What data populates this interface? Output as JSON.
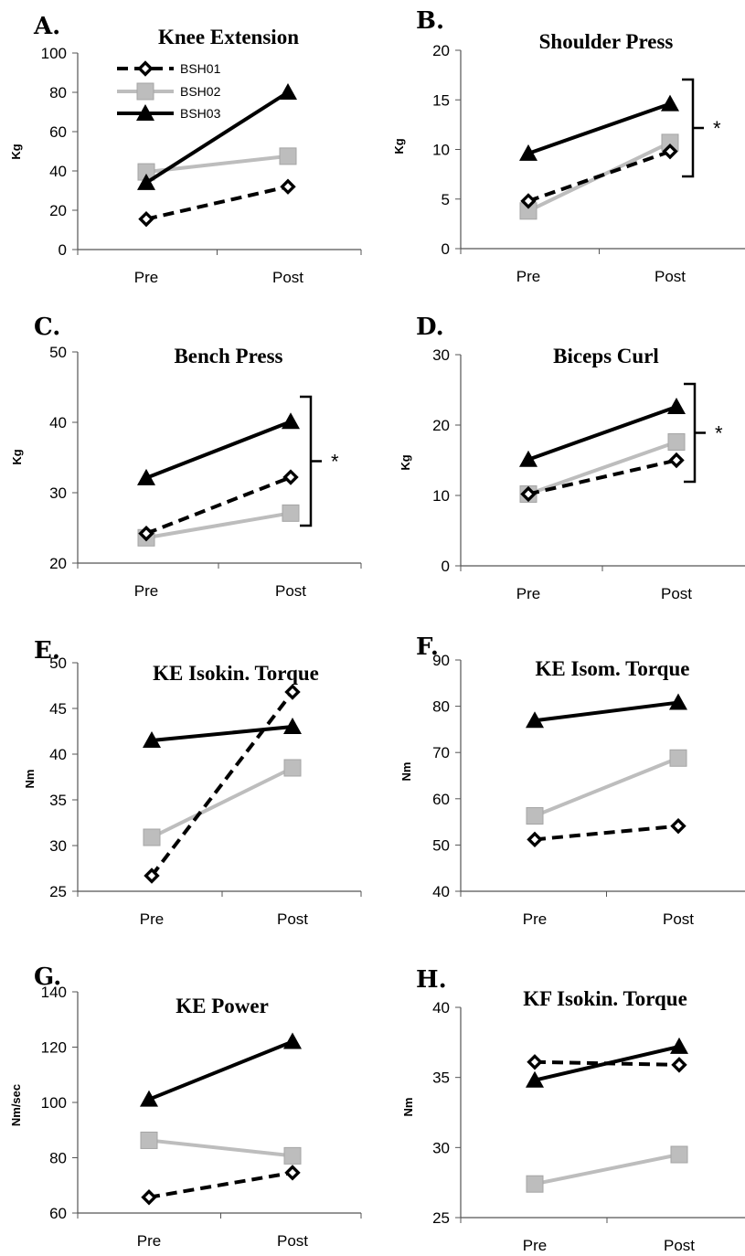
{
  "legend": [
    {
      "label": "BSH01",
      "style": "dashed-diamond"
    },
    {
      "label": "BSH02",
      "style": "gray-square"
    },
    {
      "label": "BSH03",
      "style": "black-triangle"
    }
  ],
  "series_colors": {
    "BSH01": "#000000",
    "BSH02": "#bdbdbd",
    "BSH03": "#000000"
  },
  "chart_data": [
    {
      "type": "line",
      "panel": "A.",
      "title": "Knee Extension",
      "ylabel": "Kg",
      "categories": [
        "Pre",
        "Post"
      ],
      "ylim": [
        0,
        100
      ],
      "yticks": [
        0,
        20,
        40,
        60,
        80,
        100
      ],
      "series": [
        {
          "name": "BSH01",
          "values": [
            15.5,
            32
          ]
        },
        {
          "name": "BSH02",
          "values": [
            39.5,
            47.5
          ]
        },
        {
          "name": "BSH03",
          "values": [
            34,
            80
          ]
        }
      ],
      "significance": ""
    },
    {
      "type": "line",
      "panel": "B.",
      "title": "Shoulder Press",
      "ylabel": "Kg",
      "categories": [
        "Pre",
        "Post"
      ],
      "ylim": [
        0,
        20
      ],
      "yticks": [
        0,
        5,
        10,
        15,
        20
      ],
      "series": [
        {
          "name": "BSH01",
          "values": [
            4.8,
            9.8
          ]
        },
        {
          "name": "BSH02",
          "values": [
            3.8,
            10.7
          ]
        },
        {
          "name": "BSH03",
          "values": [
            9.6,
            14.6
          ]
        }
      ],
      "significance": "*"
    },
    {
      "type": "line",
      "panel": "C.",
      "title": "Bench Press",
      "ylabel": "Kg",
      "categories": [
        "Pre",
        "Post"
      ],
      "ylim": [
        20,
        50
      ],
      "yticks": [
        20,
        30,
        40,
        50
      ],
      "series": [
        {
          "name": "BSH01",
          "values": [
            24.2,
            32.2
          ]
        },
        {
          "name": "BSH02",
          "values": [
            23.6,
            27.1
          ]
        },
        {
          "name": "BSH03",
          "values": [
            32.1,
            40.1
          ]
        }
      ],
      "significance": "*"
    },
    {
      "type": "line",
      "panel": "D.",
      "title": "Biceps Curl",
      "ylabel": "Kg",
      "categories": [
        "Pre",
        "Post"
      ],
      "ylim": [
        0,
        30
      ],
      "yticks": [
        0,
        10,
        20,
        30
      ],
      "series": [
        {
          "name": "BSH01",
          "values": [
            10.2,
            15
          ]
        },
        {
          "name": "BSH02",
          "values": [
            10.2,
            17.6
          ]
        },
        {
          "name": "BSH03",
          "values": [
            15.1,
            22.6
          ]
        }
      ],
      "significance": "*"
    },
    {
      "type": "line",
      "panel": "E.",
      "title": "KE Isokin. Torque",
      "ylabel": "Nm",
      "categories": [
        "Pre",
        "Post"
      ],
      "ylim": [
        25,
        50
      ],
      "yticks": [
        25,
        30,
        35,
        40,
        45,
        50
      ],
      "series": [
        {
          "name": "BSH01",
          "values": [
            26.7,
            46.8
          ]
        },
        {
          "name": "BSH02",
          "values": [
            30.9,
            38.5
          ]
        },
        {
          "name": "BSH03",
          "values": [
            41.5,
            43
          ]
        }
      ],
      "significance": ""
    },
    {
      "type": "line",
      "panel": "F.",
      "title": "KE Isom. Torque",
      "ylabel": "Nm",
      "categories": [
        "Pre",
        "Post"
      ],
      "ylim": [
        40,
        90
      ],
      "yticks": [
        40,
        50,
        60,
        70,
        80,
        90
      ],
      "series": [
        {
          "name": "BSH01",
          "values": [
            51.2,
            54.1
          ]
        },
        {
          "name": "BSH02",
          "values": [
            56.3,
            68.8
          ]
        },
        {
          "name": "BSH03",
          "values": [
            76.9,
            80.8
          ]
        }
      ],
      "significance": ""
    },
    {
      "type": "line",
      "panel": "G.",
      "title": "KE Power",
      "ylabel": "Nm/sec",
      "categories": [
        "Pre",
        "Post"
      ],
      "ylim": [
        60,
        140
      ],
      "yticks": [
        60,
        80,
        100,
        120,
        140
      ],
      "series": [
        {
          "name": "BSH01",
          "values": [
            65.7,
            74.6
          ]
        },
        {
          "name": "BSH02",
          "values": [
            86.3,
            80.7
          ]
        },
        {
          "name": "BSH03",
          "values": [
            101.1,
            122
          ]
        }
      ],
      "significance": ""
    },
    {
      "type": "line",
      "panel": "H.",
      "title": "KF Isokin. Torque",
      "ylabel": "Nm",
      "categories": [
        "Pre",
        "Post"
      ],
      "ylim": [
        25,
        40
      ],
      "yticks": [
        25,
        30,
        35,
        40
      ],
      "series": [
        {
          "name": "BSH01",
          "values": [
            36.1,
            35.9
          ]
        },
        {
          "name": "BSH02",
          "values": [
            27.4,
            29.5
          ]
        },
        {
          "name": "BSH03",
          "values": [
            34.8,
            37.2
          ]
        }
      ],
      "significance": ""
    }
  ]
}
